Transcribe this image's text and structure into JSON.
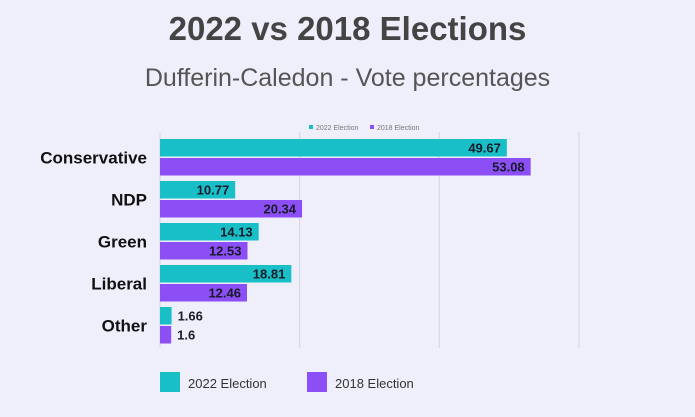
{
  "chart_data": {
    "type": "bar",
    "orientation": "horizontal",
    "title": "2022 vs 2018 Elections",
    "subtitle": "Dufferin-Caledon - Vote percentages",
    "categories": [
      "Conservative",
      "NDP",
      "Green",
      "Liberal",
      "Other"
    ],
    "series": [
      {
        "name": "2022 Election",
        "color": "#19bfc6",
        "values": [
          49.67,
          10.77,
          14.13,
          18.81,
          1.66
        ]
      },
      {
        "name": "2018 Election",
        "color": "#8c4ff5",
        "values": [
          53.08,
          20.34,
          12.53,
          12.46,
          1.6
        ]
      }
    ],
    "xlim": [
      0,
      60
    ],
    "grid": true,
    "legend": [
      "top",
      "bottom"
    ],
    "data_labels": true
  }
}
